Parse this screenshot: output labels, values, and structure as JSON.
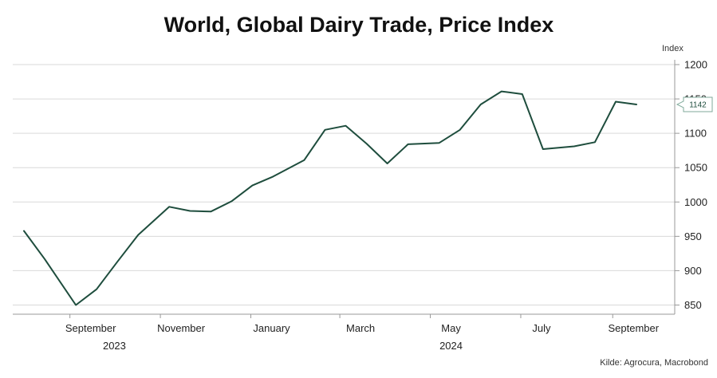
{
  "chart_data": {
    "type": "line",
    "title": "World, Global Dairy Trade, Price Index",
    "ylabel": "Index",
    "xlabel": "",
    "ylim": [
      840,
      1210
    ],
    "yticks": [
      850,
      900,
      950,
      1000,
      1050,
      1100,
      1150,
      1200
    ],
    "grid": true,
    "legend": "none",
    "line_color": "#1e4d3d",
    "x_month_labels": [
      "September",
      "November",
      "January",
      "March",
      "May",
      "July",
      "September"
    ],
    "x_year_labels": [
      "2023",
      "2024"
    ],
    "series": [
      {
        "x": [
          "2023-08-01",
          "2023-08-15",
          "2023-09-05",
          "2023-09-19",
          "2023-10-03",
          "2023-10-17",
          "2023-11-07",
          "2023-11-21",
          "2023-12-05",
          "2023-12-19",
          "2024-01-02",
          "2024-01-16",
          "2024-02-06",
          "2024-02-20",
          "2024-03-05",
          "2024-03-19",
          "2024-04-02",
          "2024-04-16",
          "2024-05-07",
          "2024-05-21",
          "2024-06-04",
          "2024-06-18",
          "2024-07-02",
          "2024-07-16",
          "2024-08-06",
          "2024-08-20",
          "2024-09-03",
          "2024-09-17"
        ],
        "values": [
          958,
          917,
          850,
          873,
          913,
          952,
          993,
          987,
          986,
          1001,
          1024,
          1037,
          1061,
          1105,
          1111,
          1085,
          1056,
          1084,
          1086,
          1105,
          1142,
          1161,
          1157,
          1077,
          1081,
          1087,
          1146,
          1142
        ]
      }
    ],
    "last_value_label": "1142",
    "source": "Kilde: Agrocura, Macrobond"
  }
}
